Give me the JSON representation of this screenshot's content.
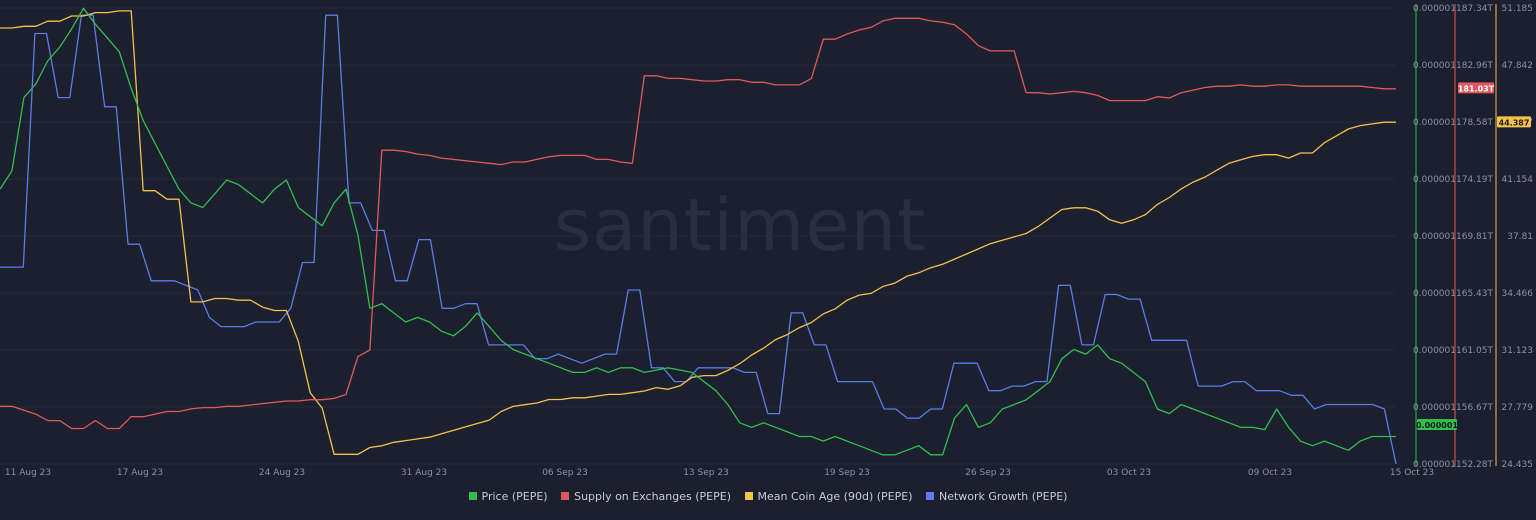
{
  "chart_data": {
    "type": "line",
    "watermark": "santiment",
    "x_ticks": [
      "11 Aug 23",
      "17 Aug 23",
      "24 Aug 23",
      "31 Aug 23",
      "06 Sep 23",
      "13 Sep 23",
      "19 Sep 23",
      "26 Sep 23",
      "03 Oct 23",
      "09 Oct 23",
      "15 Oct 23"
    ],
    "axes": {
      "price": {
        "ticks": [
          "0.000001",
          "0.000001",
          "0.000001",
          "0.000001",
          "0.000001",
          "0.000001",
          "0.000001",
          "0.000001",
          "0.000001"
        ],
        "color": "#2fbf4f",
        "current": "0.000001"
      },
      "supply": {
        "ticks": [
          "187.34T",
          "182.96T",
          "178.58T",
          "174.19T",
          "169.81T",
          "165.43T",
          "161.05T",
          "156.67T",
          "152.28T"
        ],
        "color": "#e0585b",
        "current": "181.03T",
        "range": [
          152.28,
          187.34
        ]
      },
      "age": {
        "ticks": [
          "51.185",
          "47.842",
          "44.387",
          "41.154",
          "37.81",
          "34.466",
          "31.123",
          "27.779",
          "24.435"
        ],
        "color": "#f2c14e",
        "current": "44.387",
        "range": [
          24.435,
          51.185
        ]
      }
    },
    "series": [
      {
        "name": "Price (PEPE)",
        "color": "#2fbf4f",
        "axis": "price",
        "values": [
          0.6,
          0.64,
          0.8,
          0.83,
          0.88,
          0.91,
          0.95,
          0.995,
          0.96,
          0.93,
          0.9,
          0.82,
          0.75,
          0.7,
          0.65,
          0.6,
          0.57,
          0.56,
          0.59,
          0.62,
          0.61,
          0.59,
          0.57,
          0.6,
          0.62,
          0.56,
          0.54,
          0.52,
          0.57,
          0.6,
          0.5,
          0.34,
          0.35,
          0.33,
          0.31,
          0.32,
          0.31,
          0.29,
          0.28,
          0.3,
          0.33,
          0.3,
          0.27,
          0.25,
          0.24,
          0.23,
          0.22,
          0.21,
          0.2,
          0.2,
          0.21,
          0.2,
          0.21,
          0.21,
          0.2,
          0.205,
          0.21,
          0.205,
          0.2,
          0.18,
          0.16,
          0.13,
          0.09,
          0.08,
          0.09,
          0.08,
          0.07,
          0.06,
          0.06,
          0.05,
          0.06,
          0.05,
          0.04,
          0.03,
          0.02,
          0.02,
          0.03,
          0.04,
          0.02,
          0.02,
          0.1,
          0.13,
          0.08,
          0.09,
          0.12,
          0.13,
          0.14,
          0.16,
          0.18,
          0.23,
          0.25,
          0.24,
          0.26,
          0.23,
          0.22,
          0.2,
          0.18,
          0.12,
          0.11,
          0.13,
          0.12,
          0.11,
          0.1,
          0.09,
          0.08,
          0.08,
          0.075,
          0.12,
          0.08,
          0.05,
          0.04,
          0.05,
          0.04,
          0.03,
          0.05,
          0.06,
          0.06,
          0.06
        ],
        "legend": "Price (PEPE)"
      },
      {
        "name": "Supply on Exchanges (PEPE)",
        "color": "#e0585b",
        "axis": "supply",
        "values": [
          156.7,
          156.7,
          156.4,
          156.1,
          155.6,
          155.6,
          155.0,
          155.0,
          155.6,
          155.0,
          155.0,
          155.9,
          155.9,
          156.1,
          156.3,
          156.3,
          156.5,
          156.6,
          156.6,
          156.7,
          156.7,
          156.8,
          156.9,
          157.0,
          157.1,
          157.1,
          157.2,
          157.2,
          157.3,
          157.6,
          160.5,
          161.0,
          176.3,
          176.3,
          176.2,
          176.0,
          175.9,
          175.7,
          175.6,
          175.5,
          175.4,
          175.3,
          175.2,
          175.4,
          175.4,
          175.6,
          175.8,
          175.9,
          175.9,
          175.9,
          175.6,
          175.6,
          175.4,
          175.3,
          182.0,
          182.0,
          181.8,
          181.8,
          181.7,
          181.6,
          181.6,
          181.7,
          181.7,
          181.5,
          181.5,
          181.3,
          181.3,
          181.3,
          181.8,
          184.8,
          184.8,
          185.2,
          185.5,
          185.7,
          186.2,
          186.4,
          186.4,
          186.4,
          186.2,
          186.1,
          185.9,
          185.2,
          184.3,
          183.9,
          183.9,
          183.9,
          180.7,
          180.7,
          180.6,
          180.7,
          180.8,
          180.7,
          180.5,
          180.1,
          180.1,
          180.1,
          180.1,
          180.4,
          180.3,
          180.7,
          180.9,
          181.1,
          181.2,
          181.2,
          181.3,
          181.2,
          181.2,
          181.3,
          181.3,
          181.2,
          181.2,
          181.2,
          181.2,
          181.2,
          181.2,
          181.1,
          181.0,
          181.0
        ],
        "legend": "Supply on Exchanges (PEPE)"
      },
      {
        "name": "Mean Coin Age (90d) (PEPE)",
        "color": "#f2c14e",
        "axis": "age",
        "values": [
          49.9,
          49.9,
          50.0,
          50.0,
          50.3,
          50.3,
          50.6,
          50.6,
          50.8,
          50.8,
          50.9,
          50.9,
          40.4,
          40.4,
          39.9,
          39.9,
          33.9,
          33.9,
          34.1,
          34.1,
          34.0,
          34.0,
          33.6,
          33.4,
          33.4,
          31.6,
          28.6,
          27.7,
          25.0,
          25.0,
          25.0,
          25.4,
          25.5,
          25.7,
          25.8,
          25.9,
          26.0,
          26.2,
          26.4,
          26.6,
          26.8,
          27.0,
          27.5,
          27.8,
          27.9,
          28.0,
          28.2,
          28.2,
          28.3,
          28.3,
          28.4,
          28.5,
          28.5,
          28.6,
          28.7,
          28.9,
          28.8,
          29.0,
          29.5,
          29.6,
          29.6,
          29.9,
          30.3,
          30.8,
          31.2,
          31.7,
          32.0,
          32.4,
          32.7,
          33.2,
          33.5,
          34.0,
          34.3,
          34.4,
          34.8,
          35.0,
          35.4,
          35.6,
          35.9,
          36.1,
          36.4,
          36.7,
          37.0,
          37.3,
          37.5,
          37.7,
          37.9,
          38.3,
          38.8,
          39.3,
          39.4,
          39.4,
          39.2,
          38.7,
          38.5,
          38.7,
          39.0,
          39.6,
          40.0,
          40.5,
          40.9,
          41.2,
          41.6,
          42.0,
          42.2,
          42.4,
          42.5,
          42.5,
          42.3,
          42.6,
          42.6,
          43.2,
          43.6,
          44.0,
          44.2,
          44.3,
          44.4,
          44.4
        ],
        "legend": "Mean Coin Age (90d) (PEPE)"
      },
      {
        "name": "Network Growth (PEPE)",
        "color": "#5b7be8",
        "axis": "growth",
        "values": [
          0.43,
          0.43,
          0.43,
          0.94,
          0.94,
          0.8,
          0.8,
          0.98,
          0.98,
          0.78,
          0.78,
          0.48,
          0.48,
          0.4,
          0.4,
          0.4,
          0.39,
          0.38,
          0.32,
          0.3,
          0.3,
          0.3,
          0.31,
          0.31,
          0.31,
          0.34,
          0.44,
          0.44,
          0.98,
          0.98,
          0.57,
          0.57,
          0.51,
          0.51,
          0.4,
          0.4,
          0.49,
          0.49,
          0.34,
          0.34,
          0.35,
          0.35,
          0.26,
          0.26,
          0.26,
          0.26,
          0.23,
          0.23,
          0.24,
          0.23,
          0.22,
          0.23,
          0.24,
          0.24,
          0.38,
          0.38,
          0.21,
          0.21,
          0.18,
          0.18,
          0.21,
          0.21,
          0.21,
          0.21,
          0.2,
          0.2,
          0.11,
          0.11,
          0.33,
          0.33,
          0.26,
          0.26,
          0.18,
          0.18,
          0.18,
          0.18,
          0.12,
          0.12,
          0.1,
          0.1,
          0.12,
          0.12,
          0.22,
          0.22,
          0.22,
          0.16,
          0.16,
          0.17,
          0.17,
          0.18,
          0.18,
          0.39,
          0.39,
          0.26,
          0.26,
          0.37,
          0.37,
          0.36,
          0.36,
          0.27,
          0.27,
          0.27,
          0.27,
          0.17,
          0.17,
          0.17,
          0.18,
          0.18,
          0.16,
          0.16,
          0.16,
          0.15,
          0.15,
          0.12,
          0.13,
          0.13,
          0.13,
          0.13,
          0.13,
          0.12,
          0.0
        ],
        "legend": "Network Growth (PEPE)"
      }
    ]
  }
}
